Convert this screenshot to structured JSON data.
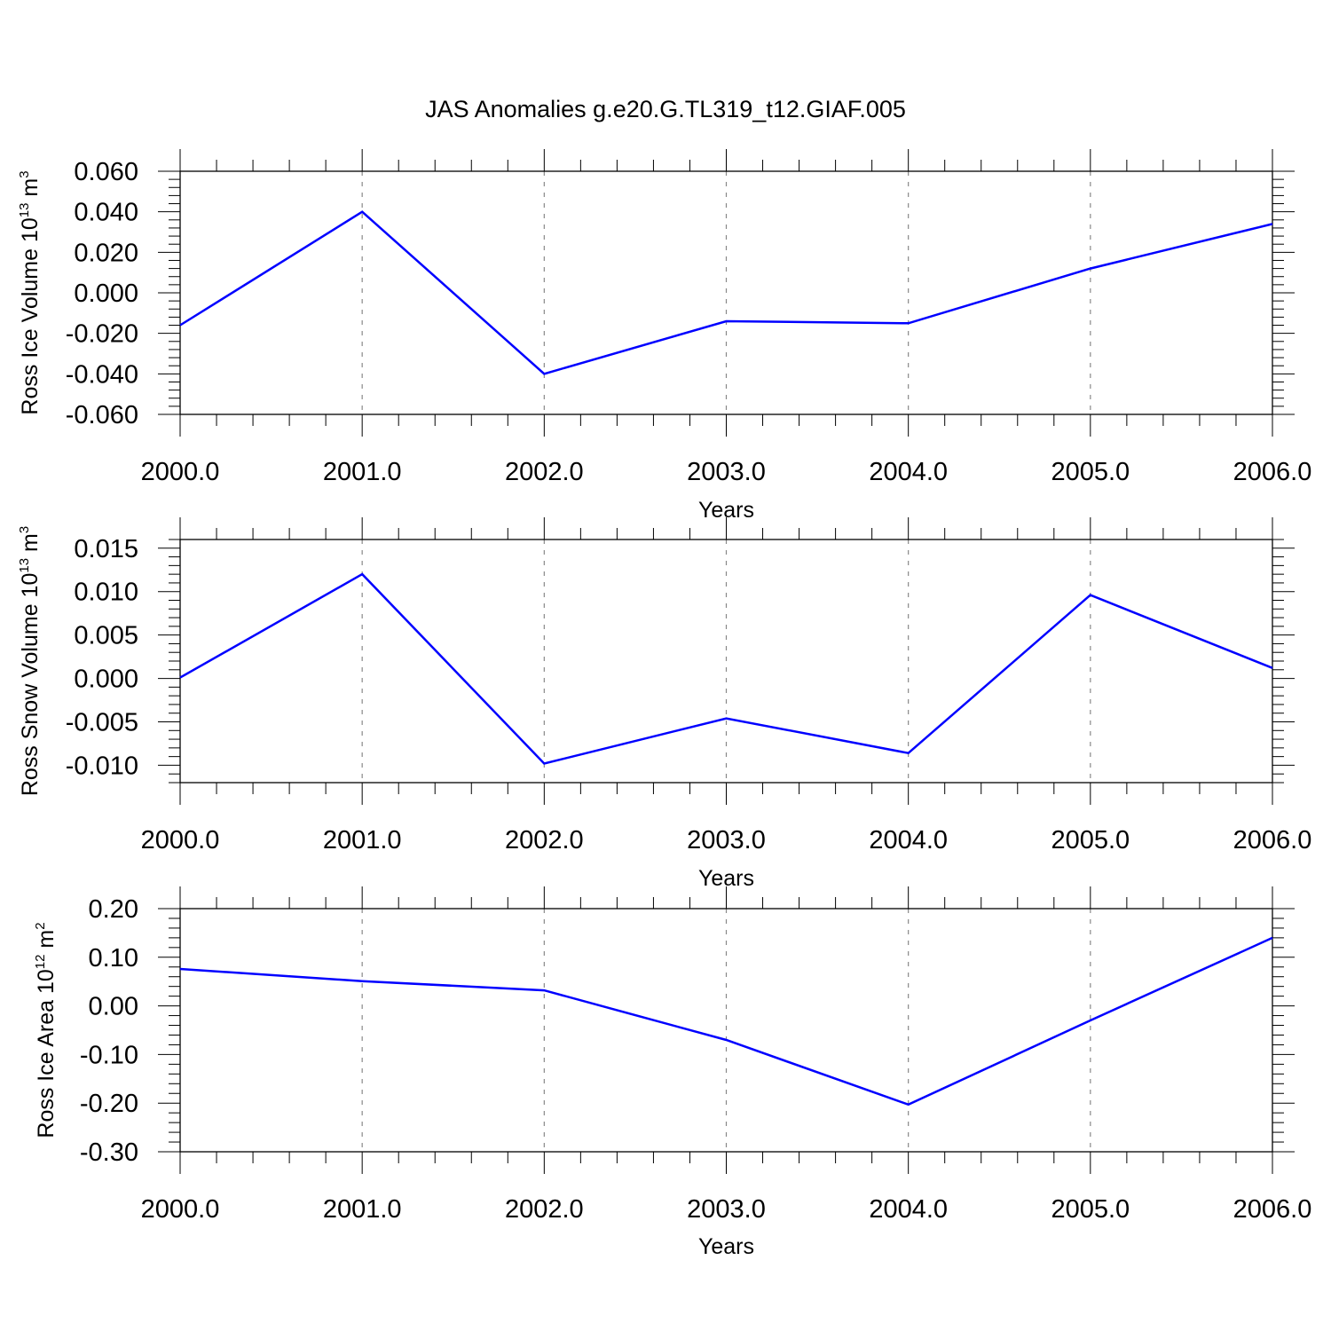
{
  "title": "JAS Anomalies g.e20.G.TL319_t12.GIAF.005",
  "series_color": "#0000ff",
  "chart_data": [
    {
      "type": "line",
      "ylabel": {
        "base": "Ross Ice Volume 10",
        "exp": "13",
        "unit": " m",
        "unit_exp": "3"
      },
      "xlabel": "Years",
      "x": [
        2000,
        2001,
        2002,
        2003,
        2004,
        2005,
        2006
      ],
      "values": [
        -0.016,
        0.04,
        -0.04,
        -0.014,
        -0.015,
        0.012,
        0.034
      ],
      "xlim": [
        2000,
        2006
      ],
      "ylim": [
        -0.06,
        0.06
      ],
      "yticks": [
        0.06,
        0.04,
        0.02,
        0.0,
        -0.02,
        -0.04,
        -0.06
      ],
      "ytick_labels": [
        "0.060",
        "0.040",
        "0.020",
        "0.000",
        "-0.020",
        "-0.040",
        "-0.060"
      ],
      "xtick_labels": [
        "2000.0",
        "2001.0",
        "2002.0",
        "2003.0",
        "2004.0",
        "2005.0",
        "2006.0"
      ],
      "grid": "vertical-dashed"
    },
    {
      "type": "line",
      "ylabel": {
        "base": "Ross Snow Volume 10",
        "exp": "13",
        "unit": " m",
        "unit_exp": "3"
      },
      "xlabel": "Years",
      "x": [
        2000,
        2001,
        2002,
        2003,
        2004,
        2005,
        2006
      ],
      "values": [
        0.0001,
        0.012,
        -0.0098,
        -0.0046,
        -0.0086,
        0.0096,
        0.0012
      ],
      "xlim": [
        2000,
        2006
      ],
      "ylim": [
        -0.012,
        0.016
      ],
      "yticks": [
        0.015,
        0.01,
        0.005,
        0.0,
        -0.005,
        -0.01
      ],
      "ytick_labels": [
        "0.015",
        "0.010",
        "0.005",
        "0.000",
        "-0.005",
        "-0.010"
      ],
      "xtick_labels": [
        "2000.0",
        "2001.0",
        "2002.0",
        "2003.0",
        "2004.0",
        "2005.0",
        "2006.0"
      ],
      "grid": "vertical-dashed"
    },
    {
      "type": "line",
      "ylabel": {
        "base": "Ross Ice Area 10",
        "exp": "12",
        "unit": " m",
        "unit_exp": "2"
      },
      "xlabel": "Years",
      "x": [
        2000,
        2001,
        2002,
        2003,
        2004,
        2005,
        2006
      ],
      "values": [
        0.076,
        0.051,
        0.032,
        -0.07,
        -0.203,
        -0.03,
        0.14
      ],
      "xlim": [
        2000,
        2006
      ],
      "ylim": [
        -0.3,
        0.2
      ],
      "yticks": [
        0.2,
        0.1,
        0.0,
        -0.1,
        -0.2,
        -0.3
      ],
      "ytick_labels": [
        "0.20",
        "0.10",
        "0.00",
        "-0.10",
        "-0.20",
        "-0.30"
      ],
      "xtick_labels": [
        "2000.0",
        "2001.0",
        "2002.0",
        "2003.0",
        "2004.0",
        "2005.0",
        "2006.0"
      ],
      "grid": "vertical-dashed"
    }
  ]
}
